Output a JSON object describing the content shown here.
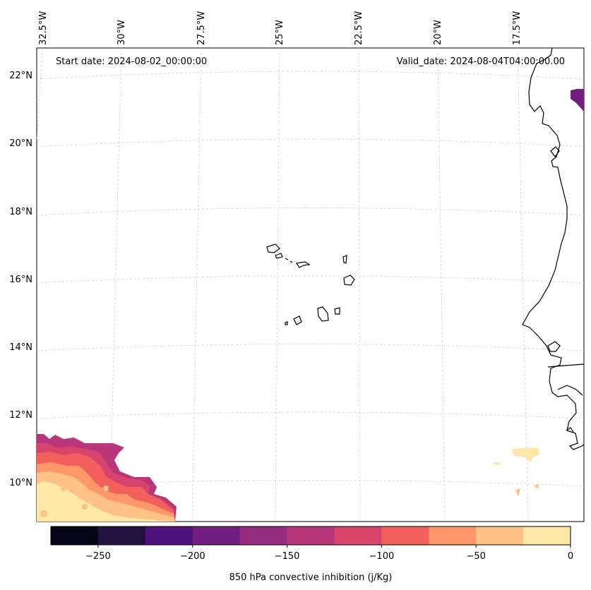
{
  "map": {
    "start_date_text": "Start date: 2024-08-02_00:00:00",
    "valid_date_text": "Valid_date: 2024-08-04T04:00:00.00",
    "lon_labels": [
      "32.5°W",
      "30°W",
      "27.5°W",
      "25°W",
      "22.5°W",
      "20°W",
      "17.5°W"
    ],
    "lat_labels": [
      "22°N",
      "20°N",
      "18°N",
      "16°N",
      "14°N",
      "12°N",
      "10°N"
    ]
  },
  "colorbar": {
    "label": "850 hPa convective inhibition (j/Kg)",
    "tick_labels": [
      "−250",
      "−200",
      "−150",
      "−100",
      "−50",
      "0"
    ],
    "bounds": [
      -275,
      0
    ],
    "colors": [
      "#050416",
      "#211340",
      "#4f127b",
      "#721f81",
      "#942c80",
      "#b73779",
      "#d8456c",
      "#f1605d",
      "#fd9668",
      "#fec287",
      "#fde8a9"
    ]
  }
}
